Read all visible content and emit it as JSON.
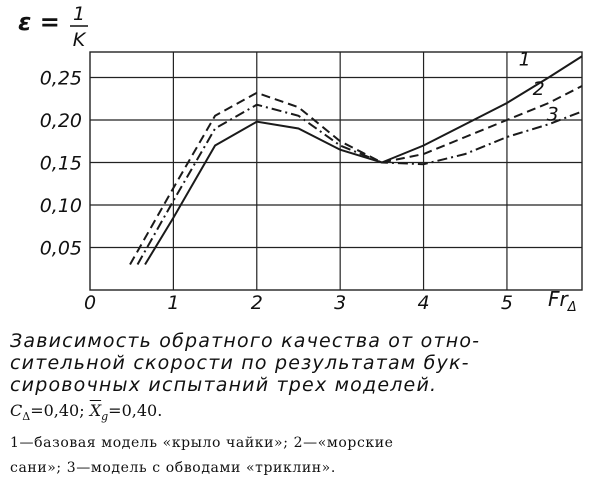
{
  "chart_data": {
    "type": "line",
    "ylabel": "ε =",
    "ylabel_numerator": "1",
    "ylabel_denominator": "K",
    "xlabel": "Fr",
    "xlabel_sub": "Δ",
    "xlim": [
      0,
      5.9
    ],
    "xticks": [
      0,
      1,
      2,
      3,
      4,
      5
    ],
    "ylim": [
      0,
      0.28
    ],
    "yticks": [
      {
        "value": 0.05,
        "label": "0,05"
      },
      {
        "value": 0.1,
        "label": "0,10"
      },
      {
        "value": 0.15,
        "label": "0,15"
      },
      {
        "value": 0.2,
        "label": "0,20"
      },
      {
        "value": 0.25,
        "label": "0,25"
      }
    ],
    "grid": true,
    "series": [
      {
        "name": "1",
        "color": "#1a1a1a",
        "dash": "solid",
        "x": [
          0.66,
          1,
          1.5,
          2,
          2.5,
          3,
          3.5,
          4,
          4.5,
          5,
          5.5,
          5.9
        ],
        "values": [
          0.03,
          0.085,
          0.17,
          0.198,
          0.19,
          0.165,
          0.15,
          0.17,
          0.195,
          0.22,
          0.25,
          0.275
        ]
      },
      {
        "name": "2",
        "color": "#1a1a1a",
        "dash": "dashed",
        "x": [
          0.48,
          1,
          1.5,
          2,
          2.5,
          3,
          3.5,
          4,
          4.5,
          5,
          5.5,
          5.9
        ],
        "values": [
          0.03,
          0.12,
          0.205,
          0.232,
          0.215,
          0.175,
          0.15,
          0.16,
          0.18,
          0.2,
          0.22,
          0.24
        ]
      },
      {
        "name": "3",
        "color": "#1a1a1a",
        "dash": "dashdot",
        "x": [
          0.57,
          1,
          1.5,
          2,
          2.5,
          3,
          3.5,
          4,
          4.5,
          5,
          5.5,
          5.9
        ],
        "values": [
          0.03,
          0.105,
          0.19,
          0.218,
          0.205,
          0.17,
          0.15,
          0.148,
          0.16,
          0.18,
          0.195,
          0.21
        ]
      }
    ]
  },
  "caption": {
    "lines": [
      "Зависимость обратного качества от отно-",
      "сительной скорости по результатам бук-",
      "сировочных испытаний трех моделей."
    ],
    "params": [
      {
        "symbol": "C",
        "sub": "Δ",
        "value": "=0,40;"
      },
      {
        "symbol": "X",
        "sub": "g",
        "value": "=0,40."
      }
    ],
    "notes": [
      "1—базовая модель «крыло чайки»; 2—«морские",
      "сани»; 3—модель с обводами «триклин»."
    ]
  }
}
